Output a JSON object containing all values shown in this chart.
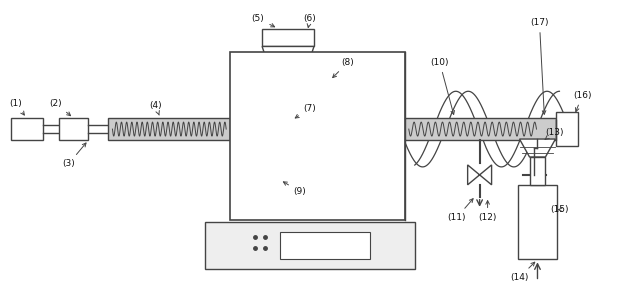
{
  "line_color": "#444444",
  "light_gray": "#cccccc",
  "label_color": "#111111",
  "fig_w": 6.18,
  "fig_h": 2.95,
  "dpi": 100
}
